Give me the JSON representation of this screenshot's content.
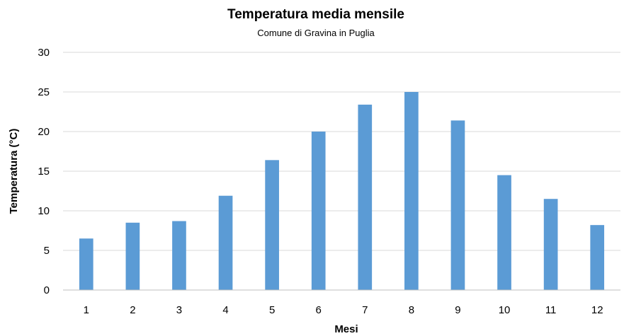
{
  "chart_data": {
    "type": "bar",
    "title": "Temperatura media mensile",
    "subtitle": "Comune di Gravina in Puglia",
    "xlabel": "Mesi",
    "ylabel": "Temperatura (°C)",
    "categories": [
      "1",
      "2",
      "3",
      "4",
      "5",
      "6",
      "7",
      "8",
      "9",
      "10",
      "11",
      "12"
    ],
    "values": [
      6.5,
      8.5,
      8.7,
      11.9,
      16.4,
      20.0,
      23.4,
      25.0,
      21.4,
      14.5,
      11.5,
      8.2
    ],
    "ylim": [
      0,
      30
    ],
    "yticks": [
      0,
      5,
      10,
      15,
      20,
      25,
      30
    ],
    "grid": true,
    "legend": "none",
    "bar_color": "#5b9bd5"
  }
}
